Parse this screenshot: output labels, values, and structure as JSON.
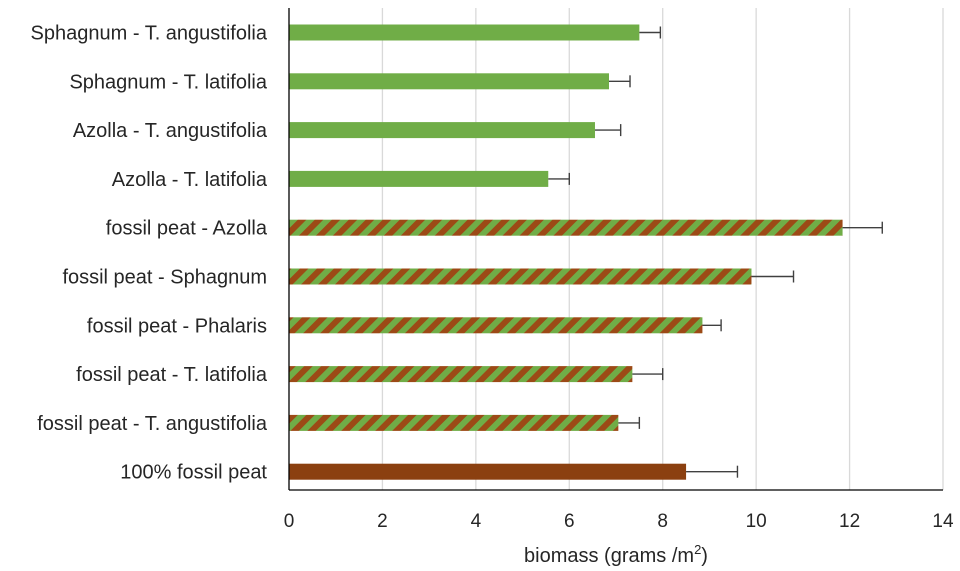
{
  "chart_data": {
    "type": "bar",
    "orientation": "horizontal",
    "title": "",
    "xlabel": "biomass (grams /m",
    "xlabel_superscript": "2",
    "xlabel_suffix": ")",
    "ylabel": "",
    "xlim": [
      0,
      14
    ],
    "x_ticks": [
      "0",
      "2",
      "4",
      "6",
      "8",
      "10",
      "12",
      "14"
    ],
    "grid": "vertical",
    "legend": "none",
    "colors": {
      "green": "#70ad47",
      "brown": "#8b4010",
      "error_bar": "#404040"
    },
    "bars": [
      {
        "label": "Sphagnum - T. angustifolia",
        "value": 7.5,
        "error": 0.45,
        "fill": "green"
      },
      {
        "label": "Sphagnum - T. latifolia",
        "value": 6.85,
        "error": 0.45,
        "fill": "green"
      },
      {
        "label": "Azolla - T. angustifolia",
        "value": 6.55,
        "error": 0.55,
        "fill": "green"
      },
      {
        "label": "Azolla - T. latifolia",
        "value": 5.55,
        "error": 0.45,
        "fill": "green"
      },
      {
        "label": "fossil peat - Azolla",
        "value": 11.85,
        "error": 0.85,
        "fill": "striped"
      },
      {
        "label": "fossil peat - Sphagnum",
        "value": 9.9,
        "error": 0.9,
        "fill": "striped"
      },
      {
        "label": "fossil peat - Phalaris",
        "value": 8.85,
        "error": 0.4,
        "fill": "striped"
      },
      {
        "label": "fossil peat - T. latifolia",
        "value": 7.35,
        "error": 0.65,
        "fill": "striped"
      },
      {
        "label": "fossil peat - T. angustifolia",
        "value": 7.05,
        "error": 0.45,
        "fill": "striped"
      },
      {
        "label": "100% fossil peat",
        "value": 8.5,
        "error": 1.1,
        "fill": "brown"
      }
    ]
  }
}
